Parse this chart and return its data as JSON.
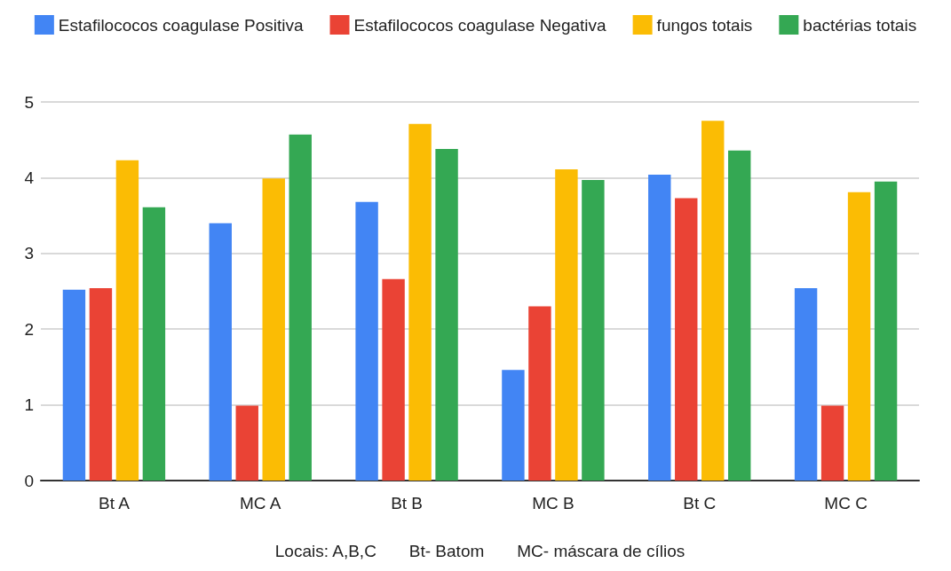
{
  "chart_data": {
    "type": "bar",
    "xlabel": "Locais: A,B,C       Bt- Batom       MC- máscara de cílios",
    "categories": [
      "Bt A",
      "MC A",
      "Bt B",
      "MC B",
      "Bt C",
      "MC C"
    ],
    "series": [
      {
        "name": "Estafilococos coagulase Positiva",
        "color": "#4285f4",
        "values": [
          2.52,
          3.4,
          3.68,
          1.46,
          4.04,
          2.54
        ]
      },
      {
        "name": "Estafilococos coagulase Negativa",
        "color": "#ea4335",
        "values": [
          2.54,
          0.99,
          2.66,
          2.3,
          3.73,
          0.99
        ]
      },
      {
        "name": "fungos totais",
        "color": "#fbbc04",
        "values": [
          4.23,
          3.99,
          4.71,
          4.11,
          4.75,
          3.81
        ]
      },
      {
        "name": "bactérias totais",
        "color": "#34a853",
        "values": [
          3.61,
          4.57,
          4.38,
          3.97,
          4.36,
          3.95
        ]
      }
    ],
    "ylim": [
      0,
      5
    ],
    "yticks": [
      0,
      1,
      2,
      3,
      4,
      5
    ],
    "grid": "y",
    "legend": "top"
  }
}
